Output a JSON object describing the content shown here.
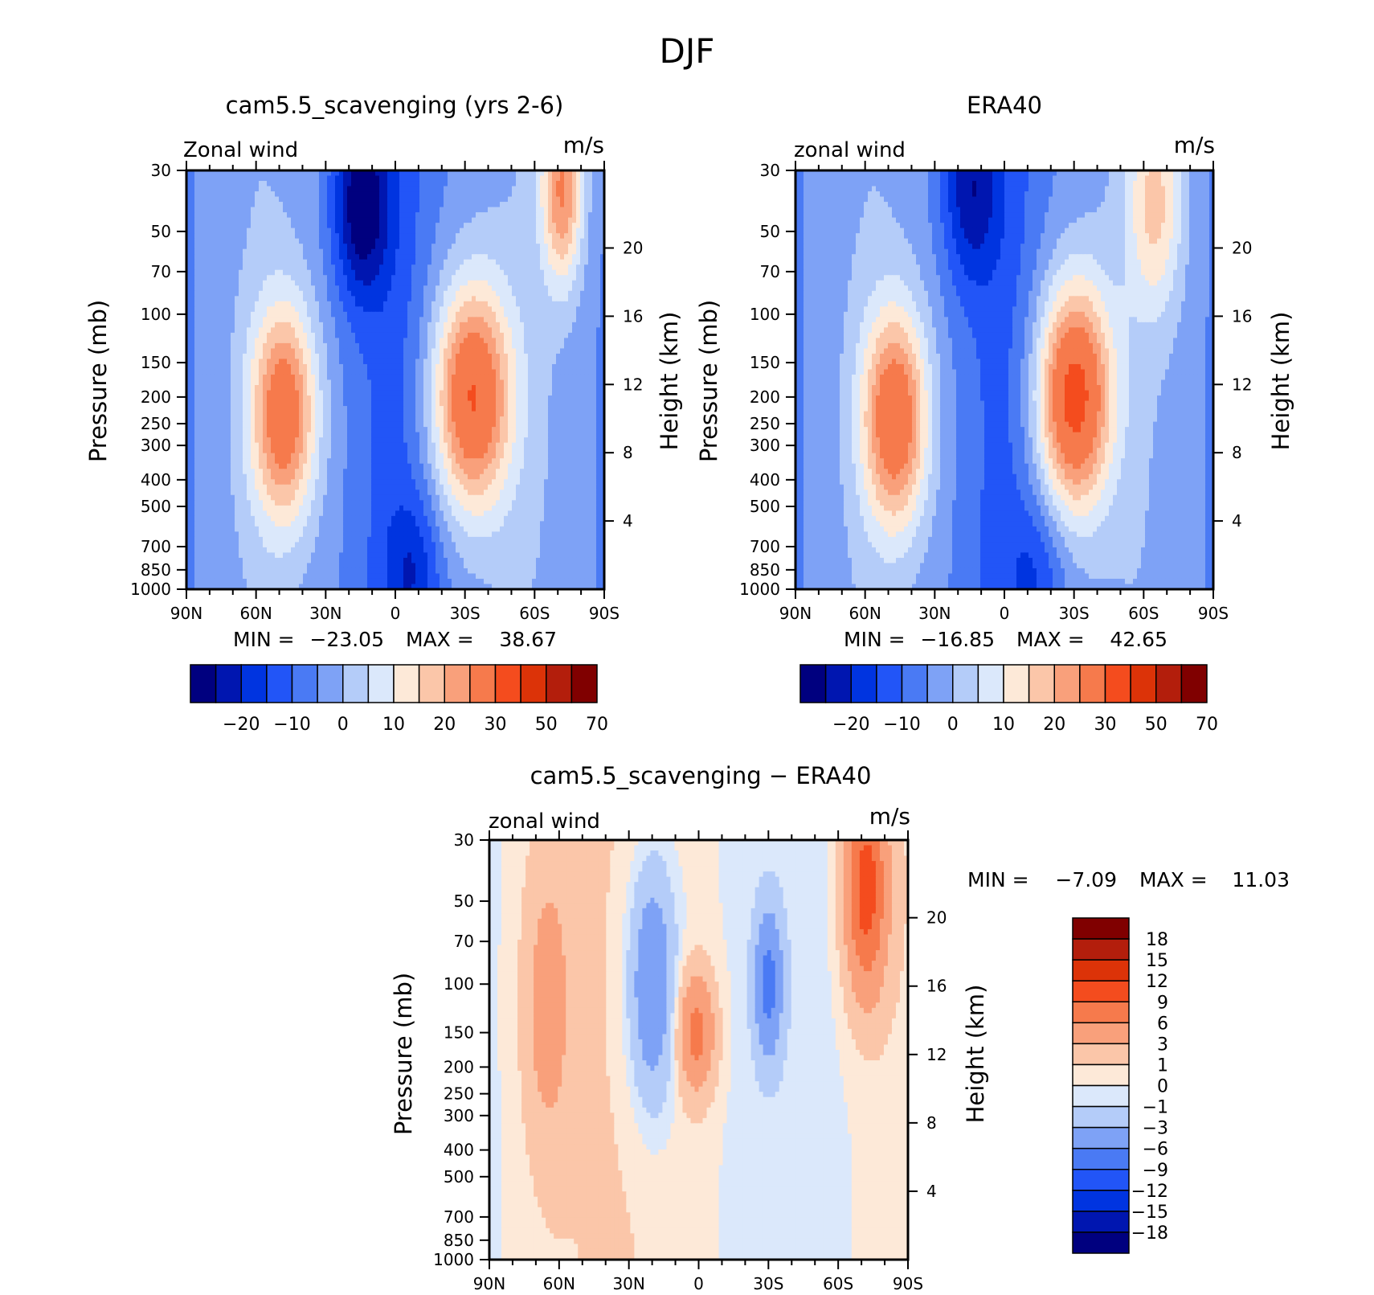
{
  "figure": {
    "title": "DJF"
  },
  "colors": {
    "abs_levels": [
      "#00007f",
      "#0016b0",
      "#0034e0",
      "#2255f7",
      "#4a7af4",
      "#7ea2f6",
      "#b4ccf9",
      "#dbe8fb",
      "#fde9d8",
      "#fbc6a9",
      "#f9a07b",
      "#f67a4c",
      "#f44c1e",
      "#dc3308",
      "#b31e0c",
      "#800000"
    ],
    "diff_levels": [
      "#00007f",
      "#0016b0",
      "#0034e0",
      "#2255f7",
      "#4a7af4",
      "#7ea2f6",
      "#b4ccf9",
      "#dbe8fb",
      "#fde9d8",
      "#fbc6a9",
      "#f9a07b",
      "#f67a4c",
      "#f44c1e",
      "#dc3308",
      "#b31e0c",
      "#800000"
    ]
  },
  "chart_data": [
    {
      "type": "heatmap",
      "id": "model",
      "title": "cam5.5_scavenging (yrs 2-6)",
      "left_label": "Zonal wind",
      "right_label": "m/s",
      "ylabel": "Pressure (mb)",
      "ylabel_right": "Height (km)",
      "x_ticks": [
        "90N",
        "60N",
        "30N",
        "0",
        "30S",
        "60S",
        "90S"
      ],
      "y_ticks": [
        30,
        50,
        70,
        100,
        150,
        200,
        250,
        300,
        400,
        500,
        700,
        850,
        1000
      ],
      "y_right_ticks": [
        4,
        8,
        12,
        16,
        20
      ],
      "stats": {
        "min_label": "MIN =",
        "min": "−23.05",
        "max_label": "MAX =",
        "max": "38.67"
      },
      "levels": [
        -25,
        -20,
        -15,
        -10,
        -5,
        0,
        5,
        10,
        15,
        20,
        25,
        30,
        40,
        50,
        60,
        70,
        80
      ],
      "colorbar_labels": [
        "−20",
        "−10",
        "0",
        "10",
        "20",
        "30",
        "50",
        "70"
      ],
      "jets": [
        {
          "lat": -33,
          "p": 200,
          "peak": 38.7,
          "lat_w": 17,
          "p_w": 0.95
        },
        {
          "lat": 48,
          "p": 230,
          "peak": 33,
          "lat_w": 14,
          "p_w": 0.9
        },
        {
          "lat": -72,
          "p": 35,
          "peak": 28,
          "lat_w": 9,
          "p_w": 0.8
        }
      ],
      "cores": [
        {
          "lat": 15,
          "p": 40,
          "peak": -23,
          "lat_w": 12,
          "p_w": 0.8
        },
        {
          "lat": -8,
          "p": 850,
          "peak": -10,
          "lat_w": 12,
          "p_w": 0.6
        }
      ]
    },
    {
      "type": "heatmap",
      "id": "era40",
      "title": "ERA40",
      "left_label": "zonal wind",
      "right_label": "m/s",
      "ylabel": "Pressure (mb)",
      "ylabel_right": "Height (km)",
      "x_ticks": [
        "90N",
        "60N",
        "30N",
        "0",
        "30S",
        "60S",
        "90S"
      ],
      "y_ticks": [
        30,
        50,
        70,
        100,
        150,
        200,
        250,
        300,
        400,
        500,
        700,
        850,
        1000
      ],
      "y_right_ticks": [
        4,
        8,
        12,
        16,
        20
      ],
      "stats": {
        "min_label": "MIN =",
        "min": "−16.85",
        "max_label": "MAX =",
        "max": "42.65"
      },
      "levels": [
        -25,
        -20,
        -15,
        -10,
        -5,
        0,
        5,
        10,
        15,
        20,
        25,
        30,
        40,
        50,
        60,
        70,
        80
      ],
      "colorbar_labels": [
        "−20",
        "−10",
        "0",
        "10",
        "20",
        "30",
        "50",
        "70"
      ],
      "jets": [
        {
          "lat": -30,
          "p": 200,
          "peak": 42.7,
          "lat_w": 16,
          "p_w": 0.95
        },
        {
          "lat": 47,
          "p": 240,
          "peak": 35,
          "lat_w": 14,
          "p_w": 0.9
        },
        {
          "lat": -65,
          "p": 40,
          "peak": 18,
          "lat_w": 12,
          "p_w": 0.9
        }
      ],
      "cores": [
        {
          "lat": 15,
          "p": 35,
          "peak": -16.9,
          "lat_w": 12,
          "p_w": 0.8
        },
        {
          "lat": -15,
          "p": 850,
          "peak": -8,
          "lat_w": 12,
          "p_w": 0.6
        }
      ]
    },
    {
      "type": "heatmap",
      "id": "diff",
      "title": "cam5.5_scavenging − ERA40",
      "left_label": "zonal wind",
      "right_label": "m/s",
      "ylabel": "Pressure (mb)",
      "ylabel_right": "Height (km)",
      "x_ticks": [
        "90N",
        "60N",
        "30N",
        "0",
        "30S",
        "60S",
        "90S"
      ],
      "y_ticks": [
        30,
        50,
        70,
        100,
        150,
        200,
        250,
        300,
        400,
        500,
        700,
        850,
        1000
      ],
      "y_right_ticks": [
        4,
        8,
        12,
        16,
        20
      ],
      "stats": {
        "min_label": "MIN =",
        "max_label": "MAX =",
        "min": "−7.09",
        "max": "11.03"
      },
      "levels": [
        -21,
        -18,
        -15,
        -12,
        -9,
        -6,
        -3,
        -1,
        0,
        1,
        3,
        6,
        9,
        12,
        15,
        18,
        21
      ],
      "colorbar_labels": [
        "18",
        "15",
        "12",
        "9",
        "6",
        "3",
        "1",
        "0",
        "−1",
        "−3",
        "−6",
        "−9",
        "−12",
        "−15",
        "−18"
      ],
      "jets": [
        {
          "lat": -72,
          "p": 45,
          "peak": 10.5,
          "lat_w": 9,
          "p_w": 0.9
        },
        {
          "lat": 1,
          "p": 150,
          "peak": 7,
          "lat_w": 8,
          "p_w": 0.5
        },
        {
          "lat": 65,
          "p": 120,
          "peak": 4,
          "lat_w": 10,
          "p_w": 1.2
        }
      ],
      "cores": [
        {
          "lat": -30,
          "p": 100,
          "peak": -7,
          "lat_w": 6,
          "p_w": 0.6
        },
        {
          "lat": 20,
          "p": 100,
          "peak": -6.5,
          "lat_w": 10,
          "p_w": 1.0
        }
      ]
    }
  ]
}
